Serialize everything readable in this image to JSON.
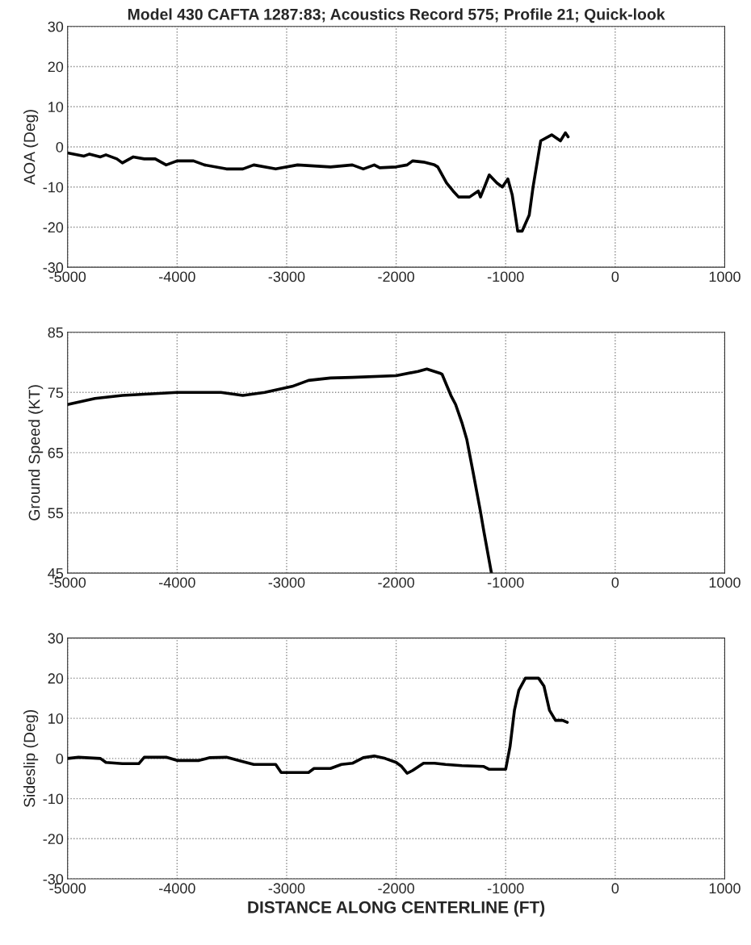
{
  "chart_data": [
    {
      "type": "line",
      "title": "Model 430 CAFTA 1287:83; Acoustics Record 575; Profile 21; Quick-look",
      "ylabel": "AOA (Deg)",
      "xlim": [
        -5000,
        1000
      ],
      "xticks": [
        -5000,
        -4000,
        -3000,
        -2000,
        -1000,
        0,
        1000
      ],
      "ylim": [
        -30,
        30
      ],
      "yticks": [
        -30,
        -20,
        -10,
        0,
        10,
        20,
        30
      ],
      "grid": true,
      "line_style": "solid",
      "marker": "none",
      "series": [
        {
          "color": "#000000",
          "x": [
            -5000,
            -4850,
            -4800,
            -4700,
            -4650,
            -4550,
            -4500,
            -4400,
            -4300,
            -4200,
            -4100,
            -4000,
            -3850,
            -3750,
            -3550,
            -3400,
            -3300,
            -3100,
            -2900,
            -2600,
            -2400,
            -2300,
            -2200,
            -2150,
            -2000,
            -1900,
            -1850,
            -1750,
            -1650,
            -1620,
            -1540,
            -1480,
            -1430,
            -1330,
            -1250,
            -1230,
            -1150,
            -1080,
            -1030,
            -980,
            -940,
            -890,
            -850,
            -785,
            -750,
            -680,
            -580,
            -500,
            -455,
            -430
          ],
          "values": [
            -1.5,
            -2.3,
            -1.8,
            -2.5,
            -2,
            -3,
            -4,
            -2.5,
            -3,
            -3,
            -4.5,
            -3.5,
            -3.5,
            -4.5,
            -5.5,
            -5.5,
            -4.5,
            -5.5,
            -4.5,
            -5,
            -4.5,
            -5.5,
            -4.5,
            -5.2,
            -5,
            -4.5,
            -3.5,
            -3.8,
            -4.5,
            -5,
            -9,
            -11,
            -12.5,
            -12.5,
            -11,
            -12.5,
            -7,
            -9,
            -10,
            -8,
            -12,
            -21,
            -21,
            -17,
            -10,
            1.5,
            3,
            1.5,
            3.5,
            2.5
          ]
        }
      ]
    },
    {
      "type": "line",
      "ylabel": "Ground Speed (KT)",
      "xlim": [
        -5000,
        1000
      ],
      "xticks": [
        -5000,
        -4000,
        -3000,
        -2000,
        -1000,
        0,
        1000
      ],
      "ylim": [
        45,
        85
      ],
      "yticks": [
        45,
        55,
        65,
        75,
        85
      ],
      "grid": true,
      "line_style": "solid",
      "marker": "none",
      "series": [
        {
          "color": "#000000",
          "x": [
            -5000,
            -4750,
            -4500,
            -4000,
            -3600,
            -3400,
            -3200,
            -2950,
            -2800,
            -2600,
            -2400,
            -2000,
            -1800,
            -1720,
            -1600,
            -1580,
            -1500,
            -1457,
            -1400,
            -1355,
            -1300,
            -1233,
            -1200,
            -1130
          ],
          "values": [
            73,
            74,
            74.5,
            75,
            75,
            74.5,
            75,
            76,
            77,
            77.4,
            77.5,
            77.8,
            78.5,
            78.9,
            78.2,
            78,
            74.5,
            73,
            70,
            67.2,
            62,
            55.5,
            52,
            45
          ]
        }
      ]
    },
    {
      "type": "line",
      "ylabel": "Sideslip (Deg)",
      "xlabel": "DISTANCE ALONG CENTERLINE (FT)",
      "xlim": [
        -5000,
        1000
      ],
      "xticks": [
        -5000,
        -4000,
        -3000,
        -2000,
        -1000,
        0,
        1000
      ],
      "ylim": [
        -30,
        30
      ],
      "yticks": [
        -30,
        -20,
        -10,
        0,
        10,
        20,
        30
      ],
      "grid": true,
      "line_style": "solid",
      "marker": "none",
      "series": [
        {
          "color": "#000000",
          "x": [
            -5000,
            -4900,
            -4700,
            -4650,
            -4500,
            -4350,
            -4300,
            -4100,
            -4000,
            -3800,
            -3700,
            -3550,
            -3400,
            -3300,
            -3100,
            -3050,
            -2800,
            -2750,
            -2600,
            -2500,
            -2400,
            -2300,
            -2200,
            -2100,
            -2000,
            -1950,
            -1900,
            -1850,
            -1750,
            -1650,
            -1550,
            -1400,
            -1200,
            -1150,
            -1000,
            -960,
            -920,
            -880,
            -820,
            -700,
            -650,
            -600,
            -545,
            -480,
            -437
          ],
          "values": [
            0,
            0.3,
            0,
            -1,
            -1.3,
            -1.3,
            0.3,
            0.3,
            -0.5,
            -0.5,
            0.2,
            0.3,
            -0.8,
            -1.5,
            -1.5,
            -3.5,
            -3.5,
            -2.5,
            -2.5,
            -1.5,
            -1.2,
            0.2,
            0.6,
            0,
            -1,
            -2,
            -3.7,
            -3,
            -1.2,
            -1.2,
            -1.5,
            -1.8,
            -2,
            -2.7,
            -2.7,
            3,
            12,
            17,
            20,
            20,
            18,
            12,
            9.5,
            9.5,
            9
          ]
        }
      ]
    }
  ]
}
